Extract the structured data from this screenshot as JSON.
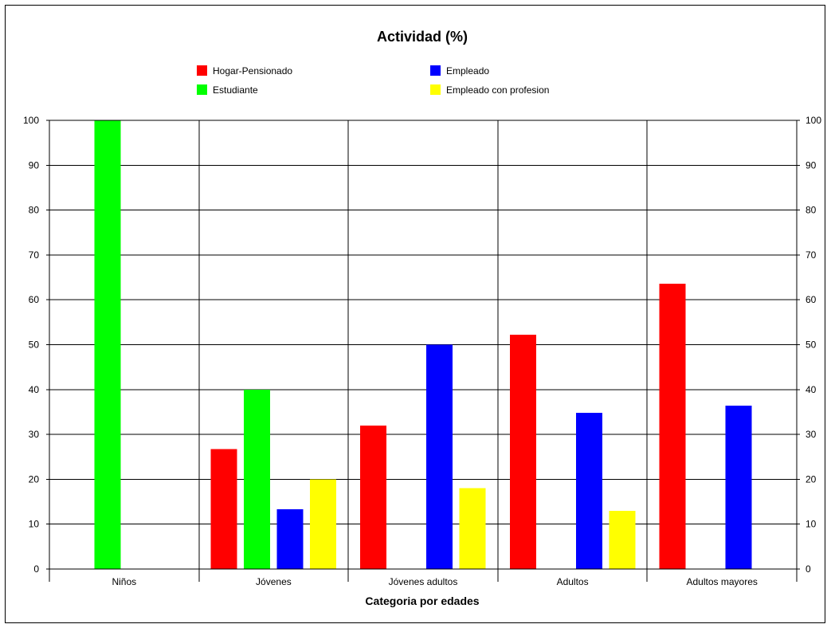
{
  "chart_data": {
    "type": "bar",
    "title": "Actividad (%)",
    "xlabel": "Categoria por edades",
    "ylabel": "",
    "ylim": [
      0,
      100
    ],
    "yticks": [
      0,
      10,
      20,
      30,
      40,
      50,
      60,
      70,
      80,
      90,
      100
    ],
    "grid": true,
    "legend_position": "top",
    "categories": [
      "Niños",
      "Jóvenes",
      "Jóvenes adultos",
      "Adultos",
      "Adultos mayores"
    ],
    "series": [
      {
        "name": "Hogar-Pensionado",
        "color": "#ff0000",
        "values": [
          0,
          26.7,
          32,
          52.2,
          63.6
        ]
      },
      {
        "name": "Estudiante",
        "color": "#00ff00",
        "values": [
          100,
          40,
          0,
          0,
          0
        ]
      },
      {
        "name": "Empleado",
        "color": "#0000ff",
        "values": [
          0,
          13.3,
          50,
          34.8,
          36.4
        ]
      },
      {
        "name": "Empleado con profesion",
        "color": "#ffff00",
        "values": [
          0,
          20,
          18,
          13,
          0
        ]
      }
    ]
  }
}
